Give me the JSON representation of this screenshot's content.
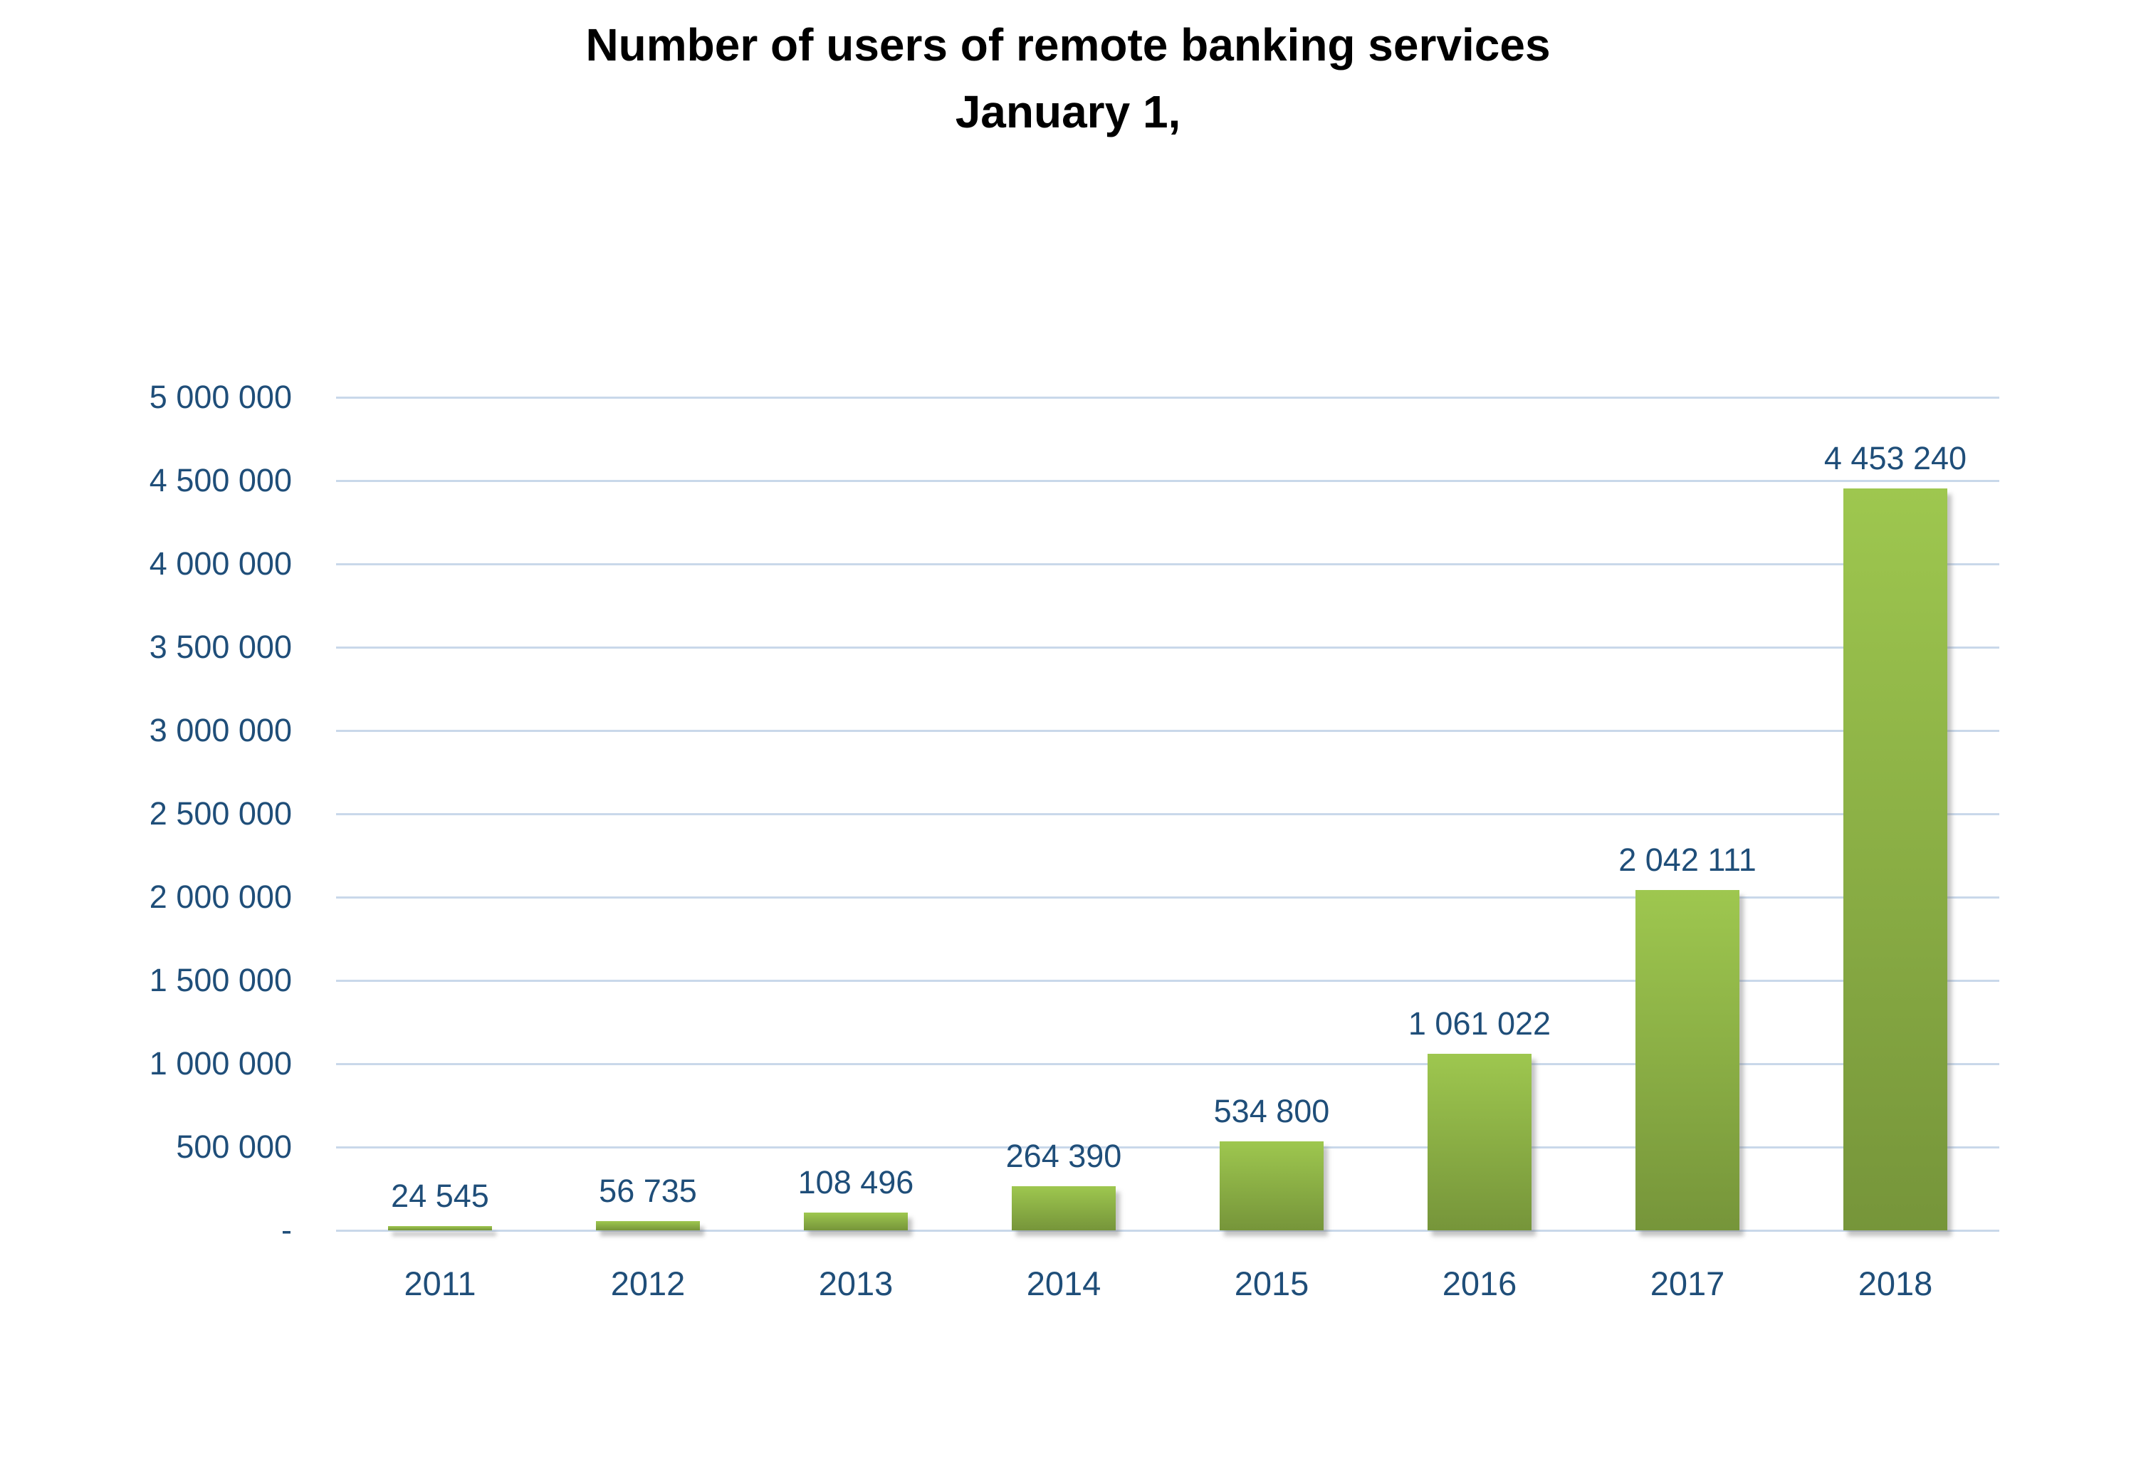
{
  "title": {
    "line1": "Number of users of remote banking services",
    "line2": "January 1,"
  },
  "chart_data": {
    "type": "bar",
    "title": "Number of users of remote banking services January 1,",
    "categories": [
      "2011",
      "2012",
      "2013",
      "2014",
      "2015",
      "2016",
      "2017",
      "2018"
    ],
    "values": [
      24545,
      56735,
      108496,
      264390,
      534800,
      1061022,
      2042111,
      4453240
    ],
    "value_labels": [
      "24 545",
      "56 735",
      "108 496",
      "264 390",
      "534 800",
      "1 061 022",
      "2 042 111",
      "4 453 240"
    ],
    "ytick_labels": [
      "5 000 000",
      "4 500 000",
      "4 000 000",
      "3 500 000",
      "3 000 000",
      "2 500 000",
      "2 000 000",
      "1 500 000",
      "1 000 000",
      "500 000",
      "-"
    ],
    "ylim": [
      0,
      5000000
    ],
    "ytick_step": 500000,
    "grid": true,
    "legend": "none",
    "xlabel": "",
    "ylabel": "",
    "colors": {
      "bar_gradient_top": "#9EC74F",
      "bar_gradient_bottom": "#76953A",
      "gridline": "#C9D8EA",
      "label_text": "#1F4E79",
      "title_text": "#000000"
    }
  }
}
